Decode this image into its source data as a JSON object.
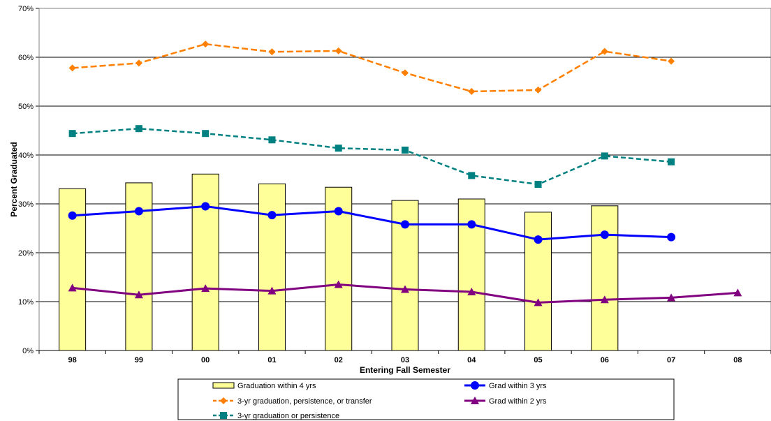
{
  "chart_data": {
    "type": "bar+line",
    "categories": [
      "98",
      "99",
      "00",
      "01",
      "02",
      "03",
      "04",
      "05",
      "06",
      "07",
      "08"
    ],
    "xlabel": "Entering Fall Semester",
    "ylabel": "Percent Graduated",
    "ylim": [
      0,
      70
    ],
    "yticks": [
      "0%",
      "10%",
      "20%",
      "30%",
      "40%",
      "50%",
      "60%",
      "70%"
    ],
    "grid": "horizontal",
    "legend_position": "bottom",
    "series": [
      {
        "name": "Graduation within 4 yrs",
        "kind": "bar",
        "color": "#ffff99",
        "values": [
          33.1,
          34.3,
          36.1,
          34.1,
          33.4,
          30.7,
          31.0,
          28.3,
          29.6,
          null,
          null
        ]
      },
      {
        "name": "Grad within 3 yrs",
        "kind": "line",
        "marker": "circle",
        "dash": "solid",
        "color": "#0000ff",
        "values": [
          27.6,
          28.5,
          29.5,
          27.7,
          28.5,
          25.8,
          25.8,
          22.7,
          23.7,
          23.2,
          null
        ]
      },
      {
        "name": "3-yr graduation, persistence, or transfer",
        "kind": "line",
        "marker": "diamond",
        "dash": "dashed",
        "color": "#ff7f00",
        "values": [
          57.8,
          58.8,
          62.7,
          61.1,
          61.3,
          56.8,
          53.0,
          53.3,
          61.2,
          59.2,
          null
        ]
      },
      {
        "name": "Grad within 2 yrs",
        "kind": "line",
        "marker": "triangle",
        "dash": "solid",
        "color": "#800080",
        "values": [
          12.8,
          11.4,
          12.7,
          12.2,
          13.5,
          12.5,
          12.0,
          9.8,
          10.4,
          10.8,
          11.8
        ]
      },
      {
        "name": "3-yr graduation or persistence",
        "kind": "line",
        "marker": "square",
        "dash": "dashed",
        "color": "#008080",
        "values": [
          44.4,
          45.4,
          44.4,
          43.1,
          41.4,
          41.0,
          35.8,
          34.0,
          39.8,
          38.6,
          null
        ]
      }
    ]
  }
}
